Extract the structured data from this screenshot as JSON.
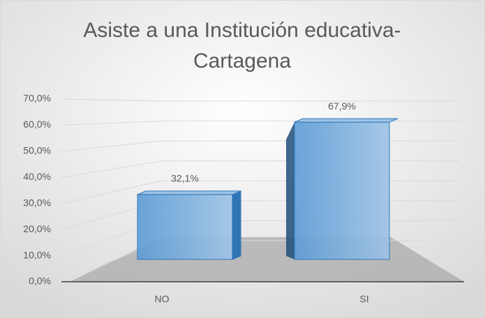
{
  "chart_data": {
    "type": "bar3d",
    "title": "Asiste a una Institución educativa-Cartagena",
    "categories": [
      "NO",
      "SI"
    ],
    "values": [
      32.1,
      67.9
    ],
    "value_labels": [
      "32,1%",
      "67,9%"
    ],
    "color": "#5b9bd5",
    "ylim": [
      0,
      70
    ],
    "yticks": [
      {
        "value": 0,
        "label": "0,0%"
      },
      {
        "value": 10,
        "label": "10,0%"
      },
      {
        "value": 20,
        "label": "20,0%"
      },
      {
        "value": 30,
        "label": "30,0%"
      },
      {
        "value": 40,
        "label": "40,0%"
      },
      {
        "value": 50,
        "label": "50,0%"
      },
      {
        "value": 60,
        "label": "60,0%"
      },
      {
        "value": 70,
        "label": "70,0%"
      }
    ],
    "grid": true
  }
}
